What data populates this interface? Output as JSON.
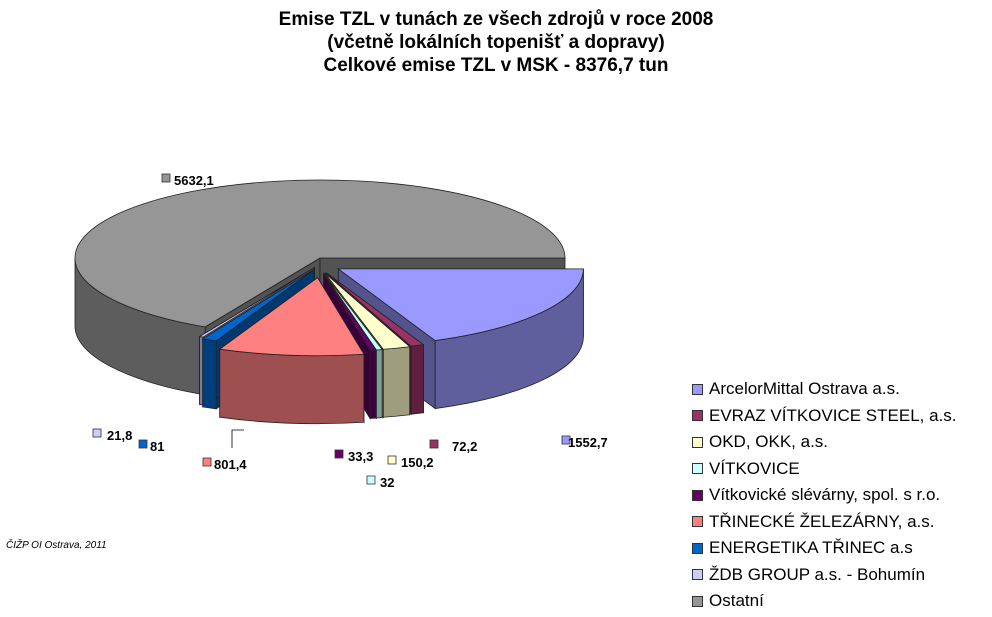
{
  "chart_data": {
    "type": "pie",
    "title": "Emise TZL v tunách  ze všech zdrojů  v roce 2008",
    "subtitle": "(včetně lokálních topenišť a dopravy)",
    "subtitle2": "Celkové emise TZL v MSK - 8376,7 tun",
    "categories": [
      "ArcelorMittal Ostrava a.s.",
      "EVRAZ VÍTKOVICE STEEL, a.s.",
      "OKD, OKK, a.s.",
      "VÍTKOVICE",
      "Vítkovické slévárny, spol. s r.o.",
      "TŘINECKÉ ŽELEZÁRNY, a.s.",
      "ENERGETIKA TŘINEC a.s",
      "ŽDB GROUP a.s. - Bohumín",
      "Ostatní"
    ],
    "values": [
      1552.7,
      72.2,
      150.2,
      32,
      33.3,
      801.4,
      81,
      21.8,
      5632.1
    ],
    "value_labels": [
      "1552,7",
      "72,2",
      "150,2",
      "32",
      "33,3",
      "801,4",
      "81",
      "21,8",
      "5632,1"
    ],
    "colors": [
      "#9999ff",
      "#993366",
      "#ffffcc",
      "#ccffff",
      "#660066",
      "#ff8080",
      "#0066cc",
      "#ccccff",
      "#969696"
    ],
    "legend_position": "right",
    "exploded": true,
    "three_d": true
  },
  "credit": "ČIŽP OI Ostrava, 2011"
}
